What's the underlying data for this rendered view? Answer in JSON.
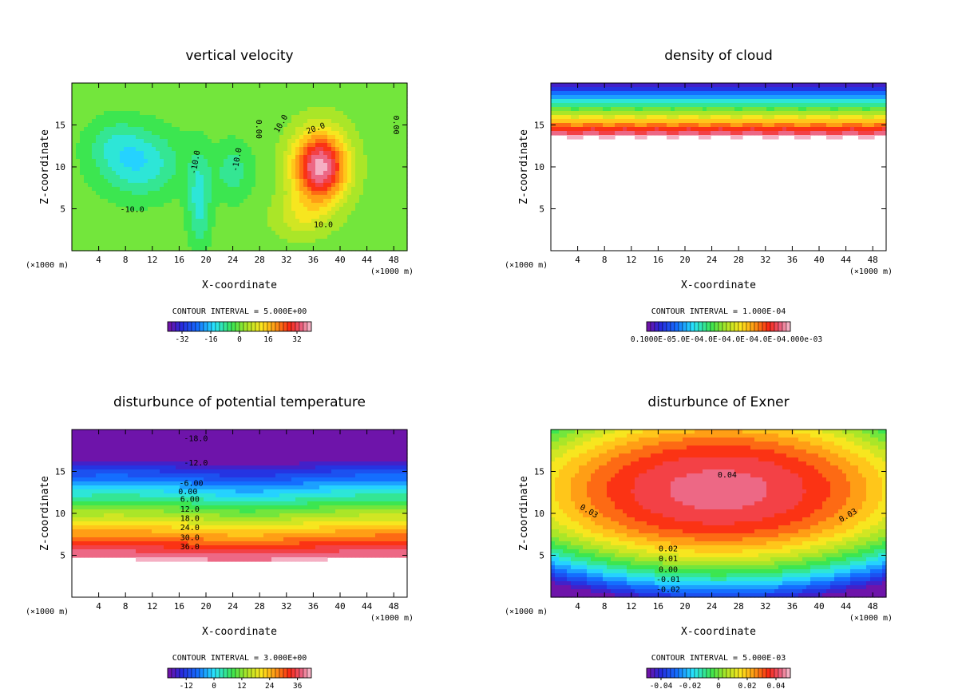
{
  "chart_data": [
    {
      "type": "contour",
      "title": "vertical velocity",
      "xlabel": "X-coordinate",
      "ylabel": "Z-coordinate",
      "x_unit_left": "(×1000 m)",
      "x_unit_right": "(×1000 m)",
      "xlim": [
        0,
        50
      ],
      "ylim": [
        0,
        20
      ],
      "x_ticks": [
        4,
        8,
        12,
        16,
        20,
        24,
        28,
        32,
        36,
        40,
        44,
        48
      ],
      "y_ticks": [
        5,
        10,
        15
      ],
      "contour_interval": "CONTOUR INTERVAL = 5.000E+00",
      "colorbar_labels": [
        "-32",
        "-16",
        "0",
        "16",
        "32"
      ],
      "colorbar_values": [
        -32,
        -16,
        0,
        16,
        32
      ],
      "colorbar_range": [
        -40,
        40
      ],
      "field_range": [
        -40,
        40
      ],
      "contour_labels": [
        {
          "text": "0.00",
          "x": 27.5,
          "y": 14.5,
          "rot": 90
        },
        {
          "text": "0.00",
          "x": 48.0,
          "y": 15.0,
          "rot": 90
        },
        {
          "text": "10.0",
          "x": 31.5,
          "y": 15.0,
          "rot": -60
        },
        {
          "text": "20.0",
          "x": 36.5,
          "y": 14.3,
          "rot": -20
        },
        {
          "text": "10.0",
          "x": 37.5,
          "y": 2.8,
          "rot": 0
        },
        {
          "text": "-10.0",
          "x": 9.0,
          "y": 4.6,
          "rot": 0
        },
        {
          "text": "-10.0",
          "x": 18.8,
          "y": 10.5,
          "rot": -80
        },
        {
          "text": "-10.0",
          "x": 25.0,
          "y": 10.8,
          "rot": -80
        }
      ]
    },
    {
      "type": "contour",
      "title": "density of cloud",
      "xlabel": "X-coordinate",
      "ylabel": "Z-coordinate",
      "x_unit_left": "(×1000 m)",
      "x_unit_right": "(×1000 m)",
      "xlim": [
        0,
        50
      ],
      "ylim": [
        0,
        20
      ],
      "x_ticks": [
        4,
        8,
        12,
        16,
        20,
        24,
        28,
        32,
        36,
        40,
        44,
        48
      ],
      "y_ticks": [
        5,
        10,
        15
      ],
      "contour_interval": "CONTOUR INTERVAL = 1.000E-04",
      "colorbar_label_text": "0.1000E-05.0E-04.0E-04.0E-04.0E-04.000e-03",
      "colorbar_range": [
        0,
        1
      ],
      "field_range": [
        0,
        1
      ],
      "contour_labels": []
    },
    {
      "type": "contour",
      "title": "disturbunce of potential temperature",
      "xlabel": "X-coordinate",
      "ylabel": "Z-coordinate",
      "x_unit_left": "(×1000 m)",
      "x_unit_right": "(×1000 m)",
      "xlim": [
        0,
        50
      ],
      "ylim": [
        0,
        20
      ],
      "x_ticks": [
        4,
        8,
        12,
        16,
        20,
        24,
        28,
        32,
        36,
        40,
        44,
        48
      ],
      "y_ticks": [
        5,
        10,
        15
      ],
      "contour_interval": "CONTOUR INTERVAL = 3.000E+00",
      "colorbar_labels": [
        "-12",
        "0",
        "12",
        "24",
        "36"
      ],
      "colorbar_values": [
        -12,
        0,
        12,
        24,
        36
      ],
      "colorbar_range": [
        -20,
        42
      ],
      "field_range": [
        -20,
        42
      ],
      "contour_labels": [
        {
          "text": "-18.0",
          "x": 18.5,
          "y": 18.6,
          "rot": 0
        },
        {
          "text": "-12.0",
          "x": 18.5,
          "y": 15.7,
          "rot": 0
        },
        {
          "text": "-6.00",
          "x": 17.8,
          "y": 13.3,
          "rot": 0
        },
        {
          "text": "0.00",
          "x": 17.3,
          "y": 12.3,
          "rot": 0
        },
        {
          "text": "6.00",
          "x": 17.6,
          "y": 11.4,
          "rot": 0
        },
        {
          "text": "12.0",
          "x": 17.6,
          "y": 10.2,
          "rot": 0
        },
        {
          "text": "18.0",
          "x": 17.6,
          "y": 9.1,
          "rot": 0
        },
        {
          "text": "24.0",
          "x": 17.6,
          "y": 8.0,
          "rot": 0
        },
        {
          "text": "30.0",
          "x": 17.6,
          "y": 6.8,
          "rot": 0
        },
        {
          "text": "36.0",
          "x": 17.6,
          "y": 5.7,
          "rot": 0
        }
      ]
    },
    {
      "type": "contour",
      "title": "disturbunce of Exner",
      "xlabel": "X-coordinate",
      "ylabel": "Z-coordinate",
      "x_unit_left": "(×1000 m)",
      "x_unit_right": "(×1000 m)",
      "xlim": [
        0,
        50
      ],
      "ylim": [
        0,
        20
      ],
      "x_ticks": [
        4,
        8,
        12,
        16,
        20,
        24,
        28,
        32,
        36,
        40,
        44,
        48
      ],
      "y_ticks": [
        5,
        10,
        15
      ],
      "contour_interval": "CONTOUR INTERVAL = 5.000E-03",
      "colorbar_labels": [
        "-0.04",
        "-0.02",
        "0",
        "0.02",
        "0.04"
      ],
      "colorbar_values": [
        -0.04,
        -0.02,
        0,
        0.02,
        0.04
      ],
      "colorbar_range": [
        -0.05,
        0.05
      ],
      "field_range": [
        -0.05,
        0.05
      ],
      "contour_labels": [
        {
          "text": "0.04",
          "x": 26.3,
          "y": 14.3,
          "rot": 0
        },
        {
          "text": "0.03",
          "x": 5.5,
          "y": 10.0,
          "rot": 30
        },
        {
          "text": "0.03",
          "x": 44.5,
          "y": 9.5,
          "rot": -30
        },
        {
          "text": "0.02",
          "x": 17.5,
          "y": 5.5,
          "rot": 0
        },
        {
          "text": "0.01",
          "x": 17.5,
          "y": 4.3,
          "rot": 0
        },
        {
          "text": "0.00",
          "x": 17.5,
          "y": 3.0,
          "rot": 0
        },
        {
          "text": "-0.01",
          "x": 17.5,
          "y": 1.8,
          "rot": 0
        },
        {
          "text": "-0.02",
          "x": 17.5,
          "y": 0.6,
          "rot": 0
        }
      ]
    }
  ]
}
